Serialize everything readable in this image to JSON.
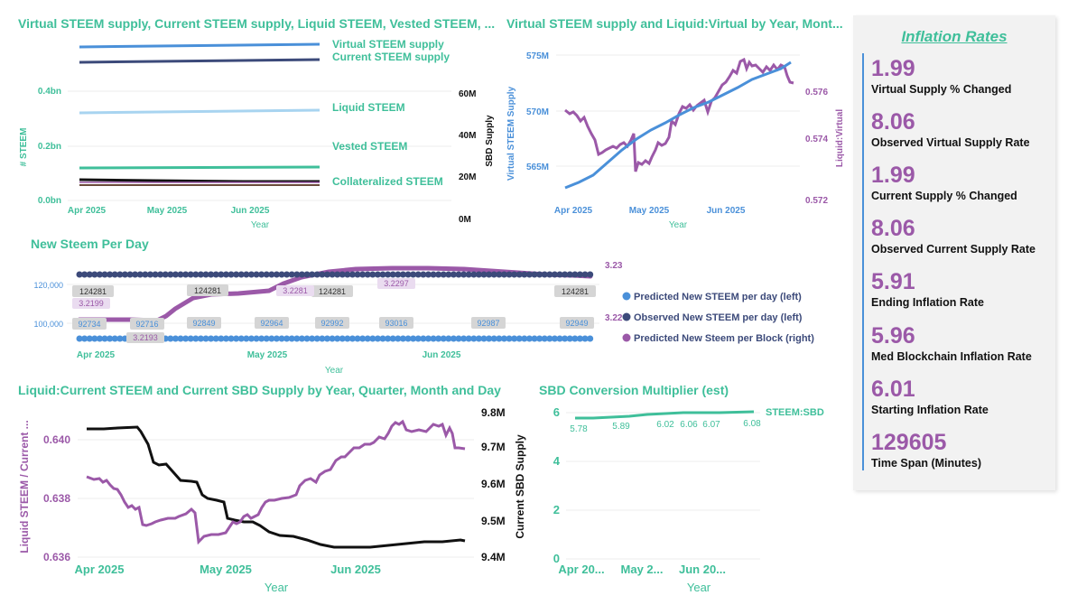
{
  "colors": {
    "teal": "#3fbf9a",
    "blue": "#4a90d9",
    "navy": "#3c4a7a",
    "light_blue": "#a8d4f0",
    "purple": "#9b59a8",
    "black": "#111111",
    "brown": "#6b4a3a",
    "grid": "#e6e6e6"
  },
  "kpi": {
    "title": "Inflation Rates",
    "items": [
      {
        "value": "1.99",
        "label": "Virtual Supply % Changed"
      },
      {
        "value": "8.06",
        "label": "Observed Virtual Supply Rate"
      },
      {
        "value": "1.99",
        "label": "Current Supply % Changed"
      },
      {
        "value": "8.06",
        "label": "Observed Current Supply Rate"
      },
      {
        "value": "5.91",
        "label": "Ending Inflation Rate"
      },
      {
        "value": "5.96",
        "label": "Med Blockchain Inflation Rate"
      },
      {
        "value": "6.01",
        "label": "Starting Inflation Rate"
      },
      {
        "value": "129605",
        "label": "Time Span (Minutes)"
      }
    ]
  },
  "chart_data": [
    {
      "type": "line",
      "title": "Virtual STEEM supply, Current STEEM supply, Liquid STEEM, Vested STEEM, ...",
      "xlabel": "Year",
      "ylabel": "# STEEM",
      "y2label": "SBD Supply",
      "x_ticks": [
        "Apr 2025",
        "May 2025",
        "Jun 2025"
      ],
      "y_ticks": [
        "0.0bn",
        "0.2bn",
        "0.4bn"
      ],
      "y_values": [
        0.0,
        0.2,
        0.4
      ],
      "ylim": [
        0,
        0.58
      ],
      "y2_ticks": [
        "0M",
        "20M",
        "40M",
        "60M"
      ],
      "series": [
        {
          "name": "Virtual STEEM supply",
          "values": [
            0.567,
            0.576
          ],
          "color": "#4a90d9"
        },
        {
          "name": "Current STEEM supply",
          "values": [
            0.512,
            0.522
          ],
          "color": "#3c4a7a"
        },
        {
          "name": "Liquid STEEM",
          "values": [
            0.325,
            0.333
          ],
          "color": "#a8d4f0"
        },
        {
          "name": "Vested STEEM",
          "values": [
            0.182,
            0.186
          ],
          "color": "#3fbf9a"
        },
        {
          "name": "Collateralized STEEM",
          "values": [
            0.075,
            0.072
          ],
          "color": "#111111"
        }
      ]
    },
    {
      "type": "line",
      "title": "Virtual STEEM supply and Liquid:Virtual by Year, Mont...",
      "xlabel": "Year",
      "ylabel": "Virtual STEEM Supply",
      "y2label": "Liquid:Virtual",
      "x_ticks": [
        "Apr 2025",
        "May 2025",
        "Jun 2025"
      ],
      "y_ticks": [
        "565M",
        "570M",
        "575M"
      ],
      "y2_ticks": [
        "0.572",
        "0.574",
        "0.576"
      ],
      "series": [
        {
          "name": "Virtual STEEM supply",
          "values": [
            563.2,
            564.0,
            564.9,
            565.7,
            566.6,
            567.4,
            568.3,
            569.1,
            570.0,
            570.8,
            571.6,
            572.5,
            573.3,
            574.2
          ],
          "color": "#4a90d9"
        },
        {
          "name": "Liquid:Virtual",
          "values": [
            0.5755,
            0.5752,
            0.5738,
            0.5735,
            0.5746,
            0.5732,
            0.574,
            0.5748,
            0.5752,
            0.5762,
            0.5765,
            0.577,
            0.5763,
            0.5759
          ],
          "color": "#9b59a8"
        }
      ]
    },
    {
      "type": "line",
      "title": "New Steem Per Day",
      "xlabel": "Year",
      "x_ticks": [
        "Apr 2025",
        "May 2025",
        "Jun 2025"
      ],
      "y_ticks": [
        "100,000",
        "120,000"
      ],
      "right_tick_labels": [
        "3.23",
        "3.22"
      ],
      "legend_position": "right",
      "series": [
        {
          "name": "Predicted New STEEM per day (left)",
          "color": "#4a90d9",
          "data_labels": [
            "92734",
            "92716",
            "92849",
            "92964",
            "92992",
            "93016",
            "92987",
            "92949"
          ]
        },
        {
          "name": "Observed New STEEM per day (left)",
          "color": "#3c4a7a",
          "data_labels": [
            "124281",
            "124281",
            "124281",
            "124281"
          ]
        },
        {
          "name": "Predicted New Steem per Block (right)",
          "color": "#9b59a8",
          "data_labels": [
            "3.2199",
            "3.2193",
            "3.2281",
            "3.2297"
          ]
        }
      ]
    },
    {
      "type": "line",
      "title": "Liquid:Current STEEM and Current SBD Supply by Year, Quarter, Month and Day",
      "xlabel": "Year",
      "ylabel": "Liquid STEEM / Current ...",
      "y2label": "Current SBD Supply",
      "x_ticks": [
        "Apr 2025",
        "May 2025",
        "Jun 2025"
      ],
      "y_ticks": [
        "0.636",
        "0.638",
        "0.640"
      ],
      "y2_ticks": [
        "9.4M",
        "9.5M",
        "9.6M",
        "9.7M",
        "9.8M"
      ],
      "series": [
        {
          "name": "Liquid STEEM / Current",
          "color": "#9b59a8",
          "values": [
            0.6387,
            0.6385,
            0.6376,
            0.637,
            0.6372,
            0.6374,
            0.6365,
            0.6367,
            0.6372,
            0.638,
            0.6385,
            0.639,
            0.6395,
            0.6402,
            0.6405,
            0.6402,
            0.6404,
            0.6397
          ]
        },
        {
          "name": "Current SBD Supply",
          "color": "#111111",
          "values": [
            9.751,
            9.753,
            9.752,
            9.712,
            9.67,
            9.642,
            9.58,
            9.543,
            9.512,
            9.47,
            9.445,
            9.434,
            9.433,
            9.441,
            9.452,
            9.458,
            9.46
          ]
        }
      ]
    },
    {
      "type": "line",
      "title": "SBD Conversion Multiplier (est)",
      "xlabel": "Year",
      "x_ticks": [
        "Apr 20...",
        "May 2...",
        "Jun 20..."
      ],
      "y_ticks": [
        "0",
        "2",
        "4",
        "6"
      ],
      "ylim": [
        0,
        6
      ],
      "series": [
        {
          "name": "STEEM:SBD",
          "color": "#3fbf9a",
          "values": [
            5.78,
            5.89,
            6.02,
            6.06,
            6.07,
            6.08
          ],
          "data_labels": [
            "5.78",
            "5.89",
            "6.02",
            "6.06",
            "6.07",
            "6.08"
          ]
        }
      ]
    }
  ]
}
